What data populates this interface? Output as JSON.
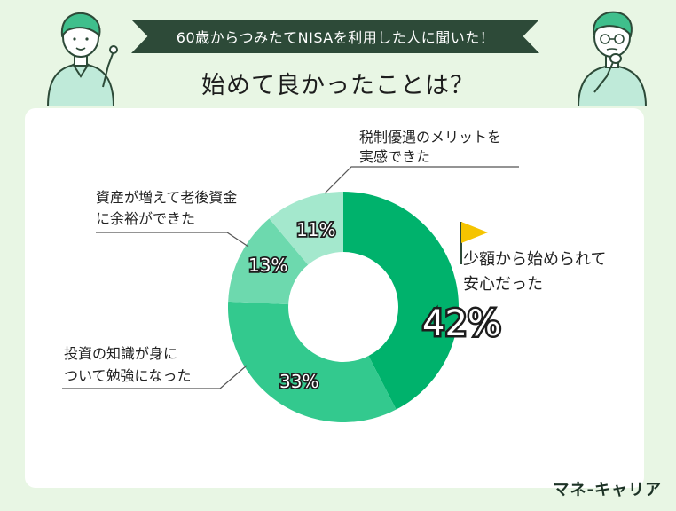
{
  "banner": "60歳からつみたてNISAを利用した人に聞いた！",
  "title": "始めて良かったことは？",
  "brand": "マネ-キャリア",
  "colors": {
    "background": "#e8f6e4",
    "banner": "#2d4a38",
    "slice1": "#00b26c",
    "slice2": "#33c98e",
    "slice3": "#6dd9ae",
    "slice4": "#a4e8cd",
    "flag": "#f5c400"
  },
  "chart_data": {
    "type": "pie",
    "categories": [
      "少額から始められて安心だった",
      "投資の知識が身についてて勉強になった",
      "資産が増えて老後資金に余裕ができた",
      "税制優遇のメリットを実感できた"
    ],
    "values": [
      42,
      33,
      13,
      11
    ],
    "value_labels": [
      "42%",
      "33%",
      "13%",
      "11%"
    ],
    "label_lines": [
      [
        "少額から始められて",
        "安心だった"
      ],
      [
        "投資の知識が身に",
        "ついて勉強になった"
      ],
      [
        "資産が増えて老後資金",
        "に余裕ができた"
      ],
      [
        "税制優遇のメリットを",
        "実感できた"
      ]
    ]
  }
}
